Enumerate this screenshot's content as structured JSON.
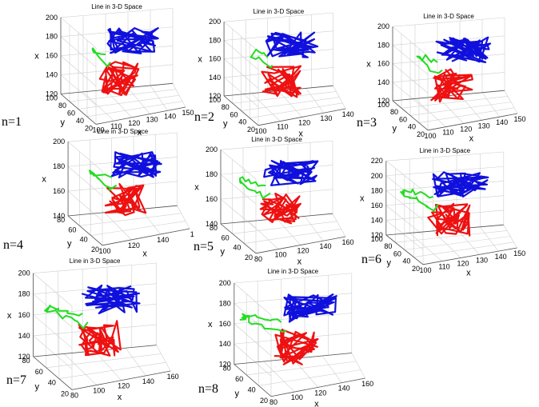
{
  "figure": {
    "panels": [
      {
        "n_label": "n=1",
        "title": "Line in 3-D Space",
        "z_ticks": [
          "120",
          "140",
          "160",
          "180",
          "200"
        ],
        "y_ticks": [
          "100",
          "80",
          "60",
          "40",
          "20"
        ],
        "x_ticks": [
          "100",
          "110",
          "120",
          "130",
          "140",
          "150"
        ],
        "zlabel": "x",
        "ylabel": "y",
        "xlabel": "x"
      },
      {
        "n_label": "n=2",
        "title": "Line in 3-D Space",
        "z_ticks": [
          "120",
          "140",
          "160",
          "180",
          "200"
        ],
        "y_ticks": [
          "100",
          "80",
          "60",
          "40",
          "20"
        ],
        "x_ticks": [
          "100",
          "110",
          "120",
          "130",
          "140"
        ],
        "zlabel": "x",
        "ylabel": "y",
        "xlabel": "x"
      },
      {
        "n_label": "n=3",
        "title": "Line in 3-D Space",
        "z_ticks": [
          "120",
          "140",
          "160",
          "180",
          "200"
        ],
        "y_ticks": [
          "100",
          "80",
          "60",
          "40",
          "20"
        ],
        "x_ticks": [
          "100",
          "110",
          "120",
          "130",
          "140",
          "150"
        ],
        "zlabel": "x",
        "ylabel": "y",
        "xlabel": "x"
      },
      {
        "n_label": "n=4",
        "title": "Line in 3-D Space",
        "z_ticks": [
          "140",
          "160",
          "180",
          "200"
        ],
        "y_ticks": [
          "80",
          "60",
          "40",
          "20"
        ],
        "x_ticks": [
          "100",
          "120",
          "140",
          "1"
        ],
        "zlabel": "x",
        "ylabel": "y",
        "xlabel": "x"
      },
      {
        "n_label": "n=5",
        "title": "Line in 3-D Space",
        "z_ticks": [
          "140",
          "160",
          "180",
          "200"
        ],
        "y_ticks": [
          "80",
          "60",
          "40",
          "20"
        ],
        "x_ticks": [
          "80",
          "100",
          "120",
          "140",
          "160"
        ],
        "zlabel": "x",
        "ylabel": "y",
        "xlabel": "x"
      },
      {
        "n_label": "n=6",
        "title": "Line in 3-D Space",
        "z_ticks": [
          "120",
          "140",
          "160",
          "180",
          "200",
          "220"
        ],
        "y_ticks": [
          "100",
          "80",
          "60",
          "40",
          "20"
        ],
        "x_ticks": [
          "100",
          "110",
          "120",
          "130",
          "140",
          "150"
        ],
        "zlabel": "x",
        "ylabel": "y",
        "xlabel": "x"
      },
      {
        "n_label": "n=7",
        "title": "Line in 3-D Space",
        "z_ticks": [
          "120",
          "140",
          "160",
          "180",
          "200"
        ],
        "y_ticks": [
          "80",
          "60",
          "40",
          "20"
        ],
        "x_ticks": [
          "80",
          "100",
          "120",
          "140",
          "160"
        ],
        "zlabel": "x",
        "ylabel": "y",
        "xlabel": "x"
      },
      {
        "n_label": "n=8",
        "title": "Line in 3-D Space",
        "z_ticks": [
          "120",
          "140",
          "160",
          "180",
          "200"
        ],
        "y_ticks": [
          "80",
          "60",
          "40",
          "20"
        ],
        "x_ticks": [
          "80",
          "100",
          "120",
          "140",
          "160"
        ],
        "zlabel": "x",
        "ylabel": "y",
        "xlabel": "x"
      }
    ]
  },
  "chart_data": {
    "type": "line",
    "projection": "3d",
    "title": "Line in 3-D Space",
    "series_colors": {
      "domain_a": "#1010dd",
      "linker": "#22dd22",
      "domain_b": "#ee1111"
    },
    "panels": [
      {
        "label": "n=1",
        "linker_segments": 1
      },
      {
        "label": "n=2",
        "linker_segments": 2
      },
      {
        "label": "n=3",
        "linker_segments": 3
      },
      {
        "label": "n=4",
        "linker_segments": 4
      },
      {
        "label": "n=5",
        "linker_segments": 5
      },
      {
        "label": "n=6",
        "linker_segments": 6
      },
      {
        "label": "n=7",
        "linker_segments": 7
      },
      {
        "label": "n=8",
        "linker_segments": 8
      }
    ],
    "grid": true
  }
}
